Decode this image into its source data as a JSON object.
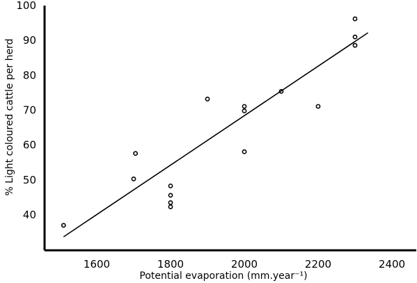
{
  "chart_data": {
    "type": "scatter",
    "title": "",
    "xlabel": "Potential evaporation (mm.year⁻¹)",
    "ylabel": "% Light coloured cattle per herd",
    "xlim": [
      1400,
      2450
    ],
    "ylim": [
      30,
      100
    ],
    "x_ticks": [
      1600,
      1800,
      2000,
      2200,
      2400
    ],
    "y_ticks": [
      40,
      50,
      60,
      70,
      80,
      90,
      100
    ],
    "grid": false,
    "series": [
      {
        "points": [
          {
            "x": 1510,
            "y": 37
          },
          {
            "x": 1700,
            "y": 50.3
          },
          {
            "x": 1705,
            "y": 57.6
          },
          {
            "x": 1800,
            "y": 48.3
          },
          {
            "x": 1800,
            "y": 45.6
          },
          {
            "x": 1800,
            "y": 43.5
          },
          {
            "x": 1800,
            "y": 42.3
          },
          {
            "x": 1900,
            "y": 73.2
          },
          {
            "x": 2000,
            "y": 71.1
          },
          {
            "x": 2000,
            "y": 69.8
          },
          {
            "x": 2000,
            "y": 58.1
          },
          {
            "x": 2100,
            "y": 75.4
          },
          {
            "x": 2200,
            "y": 71.1
          },
          {
            "x": 2300,
            "y": 96.2
          },
          {
            "x": 2300,
            "y": 91.0
          },
          {
            "x": 2300,
            "y": 88.6
          }
        ]
      }
    ],
    "trendline": {
      "x": [
        1510,
        2335
      ],
      "y": [
        33.7,
        92.2
      ]
    }
  }
}
